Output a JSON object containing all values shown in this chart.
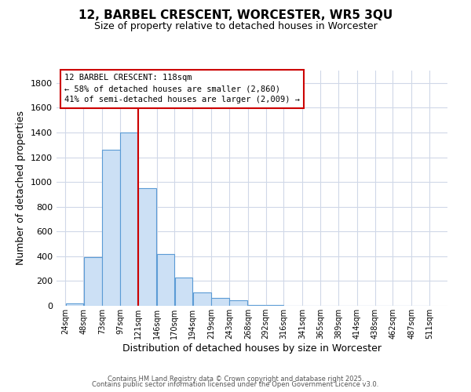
{
  "title": "12, BARBEL CRESCENT, WORCESTER, WR5 3QU",
  "subtitle": "Size of property relative to detached houses in Worcester",
  "xlabel": "Distribution of detached houses by size in Worcester",
  "ylabel": "Number of detached properties",
  "bar_left_edges": [
    24,
    48,
    73,
    97,
    121,
    146,
    170,
    194,
    219,
    243,
    268,
    292,
    316,
    341,
    365,
    389,
    414,
    438,
    462,
    487
  ],
  "bar_widths": [
    24,
    25,
    24,
    24,
    25,
    24,
    24,
    25,
    24,
    25,
    24,
    24,
    25,
    24,
    24,
    25,
    24,
    24,
    25,
    24
  ],
  "bar_heights": [
    20,
    390,
    1260,
    1400,
    950,
    420,
    230,
    110,
    65,
    45,
    5,
    5,
    0,
    0,
    0,
    0,
    0,
    0,
    0,
    0
  ],
  "bar_color": "#cce0f5",
  "bar_edge_color": "#5b9bd5",
  "red_line_x": 121,
  "red_line_color": "#cc0000",
  "annotation_line1": "12 BARBEL CRESCENT: 118sqm",
  "annotation_line2": "← 58% of detached houses are smaller (2,860)",
  "annotation_line3": "41% of semi-detached houses are larger (2,009) →",
  "annotation_box_edge": "#cc0000",
  "ylim": [
    0,
    1900
  ],
  "yticks": [
    0,
    200,
    400,
    600,
    800,
    1000,
    1200,
    1400,
    1600,
    1800
  ],
  "xtick_labels": [
    "24sqm",
    "48sqm",
    "73sqm",
    "97sqm",
    "121sqm",
    "146sqm",
    "170sqm",
    "194sqm",
    "219sqm",
    "243sqm",
    "268sqm",
    "292sqm",
    "316sqm",
    "341sqm",
    "365sqm",
    "389sqm",
    "414sqm",
    "438sqm",
    "462sqm",
    "487sqm",
    "511sqm"
  ],
  "xtick_positions": [
    24,
    48,
    73,
    97,
    121,
    146,
    170,
    194,
    219,
    243,
    268,
    292,
    316,
    341,
    365,
    389,
    414,
    438,
    462,
    487,
    511
  ],
  "footer1": "Contains HM Land Registry data © Crown copyright and database right 2025.",
  "footer2": "Contains public sector information licensed under the Open Government Licence v3.0.",
  "background_color": "#ffffff",
  "grid_color": "#d0d8e8",
  "xlim": [
    12,
    535
  ]
}
